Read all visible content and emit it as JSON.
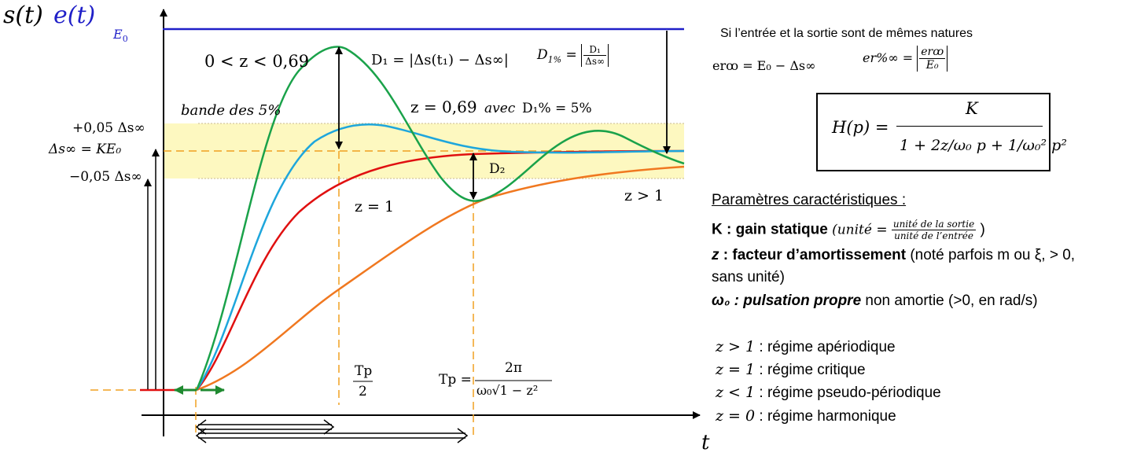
{
  "title": {
    "output": "s(t)",
    "input": "e(t)",
    "E0": "E",
    "E0_sub": "0",
    "t_axis": "t"
  },
  "labels": {
    "z_lt": "0 < z < 0,69",
    "D1_formula": "D₁ = |Δs(t₁) − Δs∞|",
    "D1pct_left": "D",
    "D1pct_sub": "1%",
    "D1pct_eq": "=",
    "D1pct_num": "D₁",
    "D1pct_den": "Δs∞",
    "band": "bande des 5%",
    "z_069": "z = 0,69",
    "avec": "avec",
    "avec_D": "D₁% = 5%",
    "plus5": "+0,05 Δs∞",
    "ds_inf": "Δs∞ = KE₀",
    "minus5": "−0,05 Δs∞",
    "D2": "D₂",
    "z1": "z = 1",
    "zgt1": "z > 1",
    "tp2_num": "Tp",
    "tp2_den": "2",
    "tp_left": "Tp =",
    "tp_num": "2π",
    "tp_den": "ω₀√1 − z²"
  },
  "right": {
    "same_nature": "Si l’entrée et la sortie sont de mêmes natures",
    "er_inf": "erꝏ = E₀ − Δs∞",
    "er_pct_left": "er%∞ =",
    "er_pct_num": "erꝏ",
    "er_pct_den": "E₀",
    "tf_left": "H(p) =",
    "tf_num": "K",
    "tf_den": "1 + 2z/ω₀ p + 1/ω₀² p²",
    "params_title": "Paramètres caractéristiques :",
    "K_bold": "K : gain statique",
    "K_unit_open": "(unité =",
    "K_unit_num": "unité de la sortie",
    "K_unit_den": "unité de l’entrée",
    "K_unit_close": ")",
    "z_bold": "z",
    "z_rest_bold": " : facteur d’amortissement",
    "z_rest": " (noté parfois m ou ξ, > 0,",
    "z_rest2": "sans unité)",
    "w_bold": "ω₀ : pulsation propre",
    "w_rest": " non amortie (>0, en rad/s)",
    "regimes": [
      {
        "cond": "z > 1",
        "text": " : régime apériodique"
      },
      {
        "cond": "z = 1",
        "text": " : régime critique"
      },
      {
        "cond": "z < 1",
        "text": " : régime pseudo-périodique"
      },
      {
        "cond": "z = 0",
        "text": " : régime harmonique"
      }
    ]
  },
  "colors": {
    "input": "#1f1fc8",
    "green": "#1aa24a",
    "cyan": "#1ea6dc",
    "red": "#e01010",
    "orange": "#f07820",
    "dash": "#f0a020",
    "band": "#fdf8c0"
  }
}
